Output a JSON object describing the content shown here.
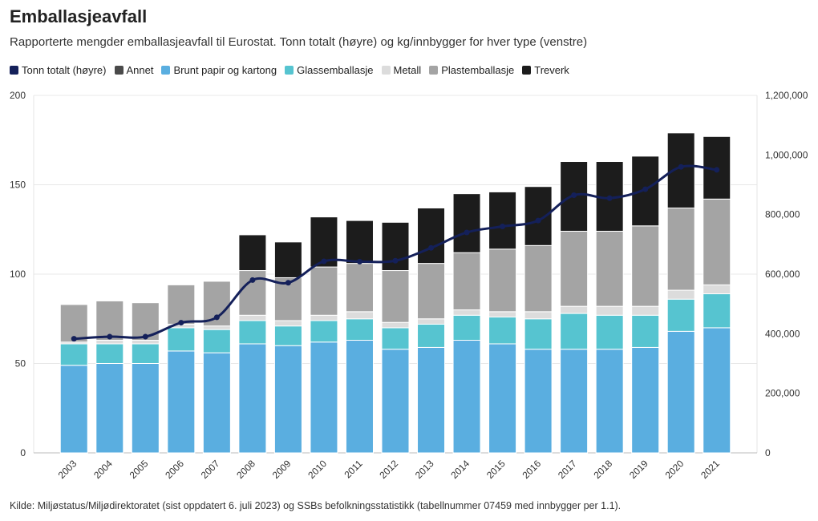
{
  "title": "Emballasjeavfall",
  "subtitle": "Rapporterte mengder emballasjeavfall til Eurostat. Tonn totalt (høyre) og kg/innbygger for hver type (venstre)",
  "source": "Kilde: Miljøstatus/Miljødirektoratet (sist oppdatert 6. juli 2023) og SSBs befolkningsstatistikk (tabellnummer 07459 med innbygger per 1.1).",
  "chart_data": {
    "type": "bar",
    "stacked": true,
    "categories": [
      "2003",
      "2004",
      "2005",
      "2006",
      "2007",
      "2008",
      "2009",
      "2010",
      "2011",
      "2012",
      "2013",
      "2014",
      "2015",
      "2016",
      "2017",
      "2018",
      "2019",
      "2020",
      "2021"
    ],
    "ylim_left": [
      0,
      200
    ],
    "yticks_left": [
      0,
      50,
      100,
      150,
      200
    ],
    "ytick_labels_left": [
      "0",
      "50",
      "100",
      "150",
      "200"
    ],
    "ylim_right": [
      0,
      1200000
    ],
    "yticks_right": [
      0,
      200000,
      400000,
      600000,
      800000,
      1000000,
      1200000
    ],
    "ytick_labels_right": [
      "0",
      "200,000",
      "400,000",
      "600,000",
      "800,000",
      "1,000,000",
      "1,200,000"
    ],
    "grid": true,
    "legend_position": "top-left",
    "series": [
      {
        "name": "Brunt papir og kartong",
        "color": "#5aaee0",
        "values": [
          49,
          50,
          50,
          57,
          56,
          61,
          60,
          62,
          63,
          58,
          59,
          63,
          61,
          58,
          58,
          58,
          59,
          68,
          70
        ]
      },
      {
        "name": "Glassemballasje",
        "color": "#56c4d0",
        "values": [
          12,
          11,
          11,
          13,
          13,
          13,
          11,
          12,
          12,
          12,
          13,
          14,
          15,
          17,
          20,
          19,
          18,
          18,
          19
        ]
      },
      {
        "name": "Metall",
        "color": "#dcdcdc",
        "values": [
          1,
          2,
          2,
          2,
          2,
          3,
          3,
          3,
          4,
          3,
          3,
          3,
          3,
          4,
          4,
          5,
          5,
          5,
          5
        ]
      },
      {
        "name": "Plastemballasje",
        "color": "#a4a4a4",
        "values": [
          21,
          22,
          21,
          22,
          25,
          25,
          24,
          27,
          27,
          29,
          31,
          32,
          35,
          37,
          42,
          42,
          45,
          46,
          48
        ]
      },
      {
        "name": "Annet",
        "color": "#4a4a4a",
        "values": [
          0,
          0,
          0,
          0,
          0,
          0,
          0,
          0,
          0,
          0,
          0,
          0,
          0,
          0,
          0,
          0,
          0,
          0,
          0
        ]
      },
      {
        "name": "Treverk",
        "color": "#1c1c1c",
        "values": [
          0,
          0,
          0,
          0,
          0,
          20,
          20,
          28,
          24,
          27,
          31,
          33,
          32,
          33,
          39,
          39,
          39,
          42,
          35
        ]
      }
    ],
    "line": {
      "name": "Tonn totalt (høyre)",
      "color": "#14205a",
      "axis": "right",
      "values": [
        383000,
        390000,
        390000,
        437000,
        455000,
        580000,
        571000,
        643000,
        642000,
        645000,
        688000,
        740000,
        760000,
        780000,
        865000,
        855000,
        885000,
        960000,
        950000
      ]
    },
    "legend": [
      {
        "name": "Tonn totalt (høyre)",
        "color": "#14205a"
      },
      {
        "name": "Annet",
        "color": "#4a4a4a"
      },
      {
        "name": "Brunt papir og kartong",
        "color": "#5aaee0"
      },
      {
        "name": "Glassemballasje",
        "color": "#56c4d0"
      },
      {
        "name": "Metall",
        "color": "#dcdcdc"
      },
      {
        "name": "Plastemballasje",
        "color": "#a4a4a4"
      },
      {
        "name": "Treverk",
        "color": "#1c1c1c"
      }
    ]
  }
}
